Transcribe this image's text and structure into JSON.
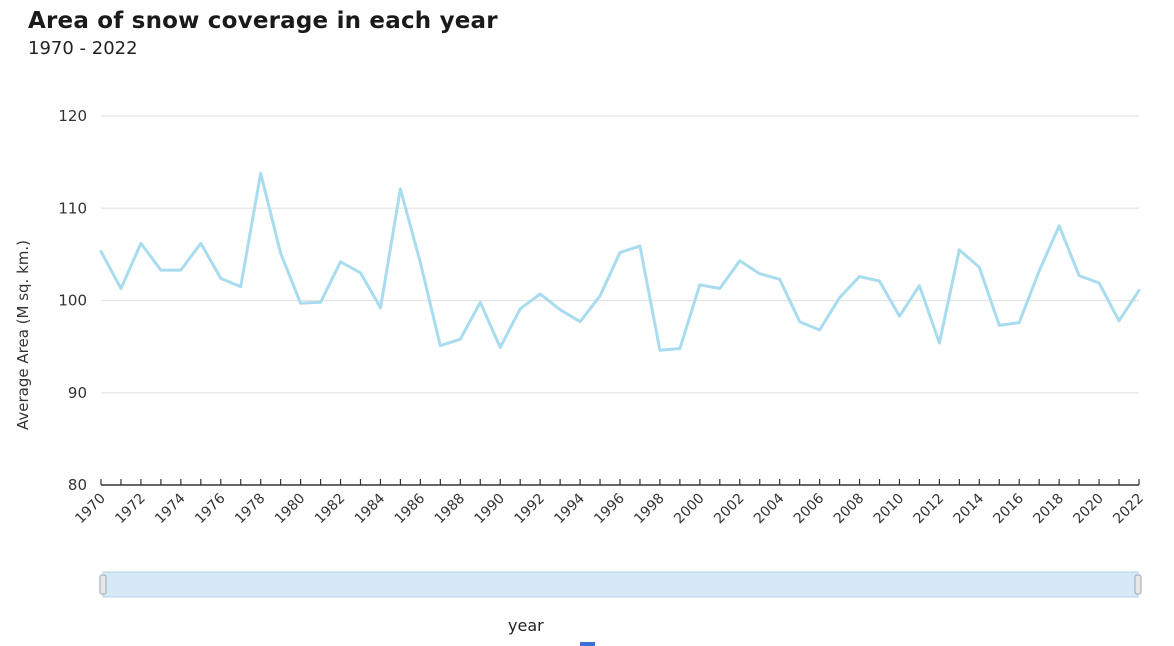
{
  "title": "Area of snow coverage in each year",
  "subtitle": "1970 - 2022",
  "xaxis_label": "year",
  "colors": {
    "line": "#a8dcee",
    "grid": "#e4e4e4",
    "axis": "#333333",
    "slider_fill": "#d6e9f6",
    "slider_border": "#b9d3e6",
    "accent": "#3a6fd8"
  },
  "chart_data": {
    "type": "line",
    "title": "Area of snow coverage in each year",
    "subtitle": "1970 - 2022",
    "xlabel": "year",
    "ylabel": "Average Area (M sq. km.)",
    "ylim": [
      80,
      120
    ],
    "yticks": [
      80,
      90,
      100,
      110,
      120
    ],
    "grid": true,
    "xticks": [
      "1970",
      "1972",
      "1974",
      "1976",
      "1978",
      "1980",
      "1982",
      "1984",
      "1986",
      "1988",
      "1990",
      "1992",
      "1994",
      "1996",
      "1998",
      "2000",
      "2002",
      "2004",
      "2006",
      "2008",
      "2010",
      "2012",
      "2014",
      "2016",
      "2018",
      "2020",
      "2022"
    ],
    "x": [
      1970,
      1971,
      1972,
      1973,
      1974,
      1975,
      1976,
      1977,
      1978,
      1979,
      1980,
      1981,
      1982,
      1983,
      1984,
      1985,
      1986,
      1987,
      1988,
      1989,
      1990,
      1991,
      1992,
      1993,
      1994,
      1995,
      1996,
      1997,
      1998,
      1999,
      2000,
      2001,
      2002,
      2003,
      2004,
      2005,
      2006,
      2007,
      2008,
      2009,
      2010,
      2011,
      2012,
      2013,
      2014,
      2015,
      2016,
      2017,
      2018,
      2019,
      2020,
      2021,
      2022
    ],
    "series": [
      {
        "values": [
          105.3,
          101.3,
          106.2,
          103.3,
          103.3,
          106.2,
          102.4,
          101.5,
          113.8,
          105.1,
          99.7,
          99.8,
          104.2,
          103.0,
          99.2,
          112.1,
          104.1,
          95.1,
          95.8,
          99.8,
          94.9,
          99.1,
          100.7,
          99.0,
          97.7,
          100.5,
          105.2,
          105.9,
          94.6,
          94.8,
          101.7,
          101.3,
          104.3,
          102.9,
          102.3,
          97.7,
          96.8,
          100.3,
          102.6,
          102.1,
          98.3,
          101.6,
          95.4,
          105.5,
          103.6,
          97.3,
          97.6,
          103.2,
          108.1,
          102.7,
          101.9,
          97.8,
          101.1
        ]
      }
    ]
  }
}
